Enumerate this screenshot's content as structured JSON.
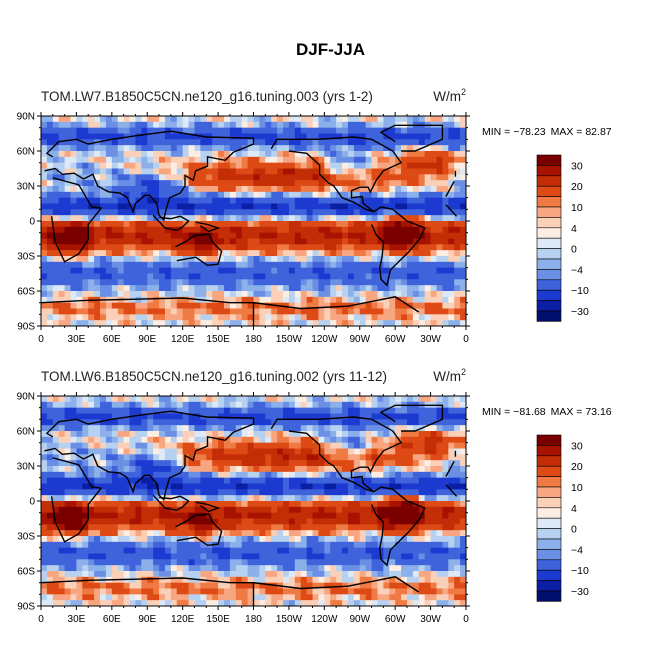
{
  "figure": {
    "title": "DJF-JJA"
  },
  "chart_data": [
    {
      "type": "heatmap",
      "title_left": "TOM.LW7.B1850C5CN.ne120_g16.tuning.003 (yrs 1-2)",
      "title_right": "W/m",
      "title_right_sup": "2",
      "min_label": "MIN = −78.23",
      "max_label": "MAX =  82.87",
      "colorbar_labels": [
        "30",
        "20",
        "10",
        "4",
        "0",
        "−4",
        "−10",
        "−30"
      ],
      "colorbar_colors": [
        "#7a0000",
        "#a81200",
        "#c42e06",
        "#de4a16",
        "#ef7a43",
        "#f7a681",
        "#fbd0b8",
        "#fdeee3",
        "#dde9f7",
        "#b7d1f1",
        "#8cb1ea",
        "#6a8fe5",
        "#3f63db",
        "#1d3ad0",
        "#0a1fa3",
        "#000f6d"
      ],
      "lat_ticks": [
        "90N",
        "60N",
        "30N",
        "0",
        "30S",
        "60S",
        "90S"
      ],
      "lon_ticks": [
        "0",
        "30E",
        "60E",
        "90E",
        "120E",
        "150E",
        "180",
        "150W",
        "120W",
        "90W",
        "60W",
        "30W",
        "0"
      ]
    },
    {
      "type": "heatmap",
      "title_left": "TOM.LW6.B1850C5CN.ne120_g16.tuning.002 (yrs 11-12)",
      "title_right": "W/m",
      "title_right_sup": "2",
      "min_label": "MIN = −81.68",
      "max_label": "MAX =  73.16",
      "colorbar_labels": [
        "30",
        "20",
        "10",
        "4",
        "0",
        "−4",
        "−10",
        "−30"
      ],
      "colorbar_colors": [
        "#7a0000",
        "#a81200",
        "#c42e06",
        "#de4a16",
        "#ef7a43",
        "#f7a681",
        "#fbd0b8",
        "#fdeee3",
        "#dde9f7",
        "#b7d1f1",
        "#8cb1ea",
        "#6a8fe5",
        "#3f63db",
        "#1d3ad0",
        "#0a1fa3",
        "#000f6d"
      ],
      "lat_ticks": [
        "90N",
        "60N",
        "30N",
        "0",
        "30S",
        "60S",
        "90S"
      ],
      "lon_ticks": [
        "0",
        "30E",
        "60E",
        "90E",
        "120E",
        "150E",
        "180",
        "150W",
        "120W",
        "90W",
        "60W",
        "30W",
        "0"
      ]
    }
  ]
}
